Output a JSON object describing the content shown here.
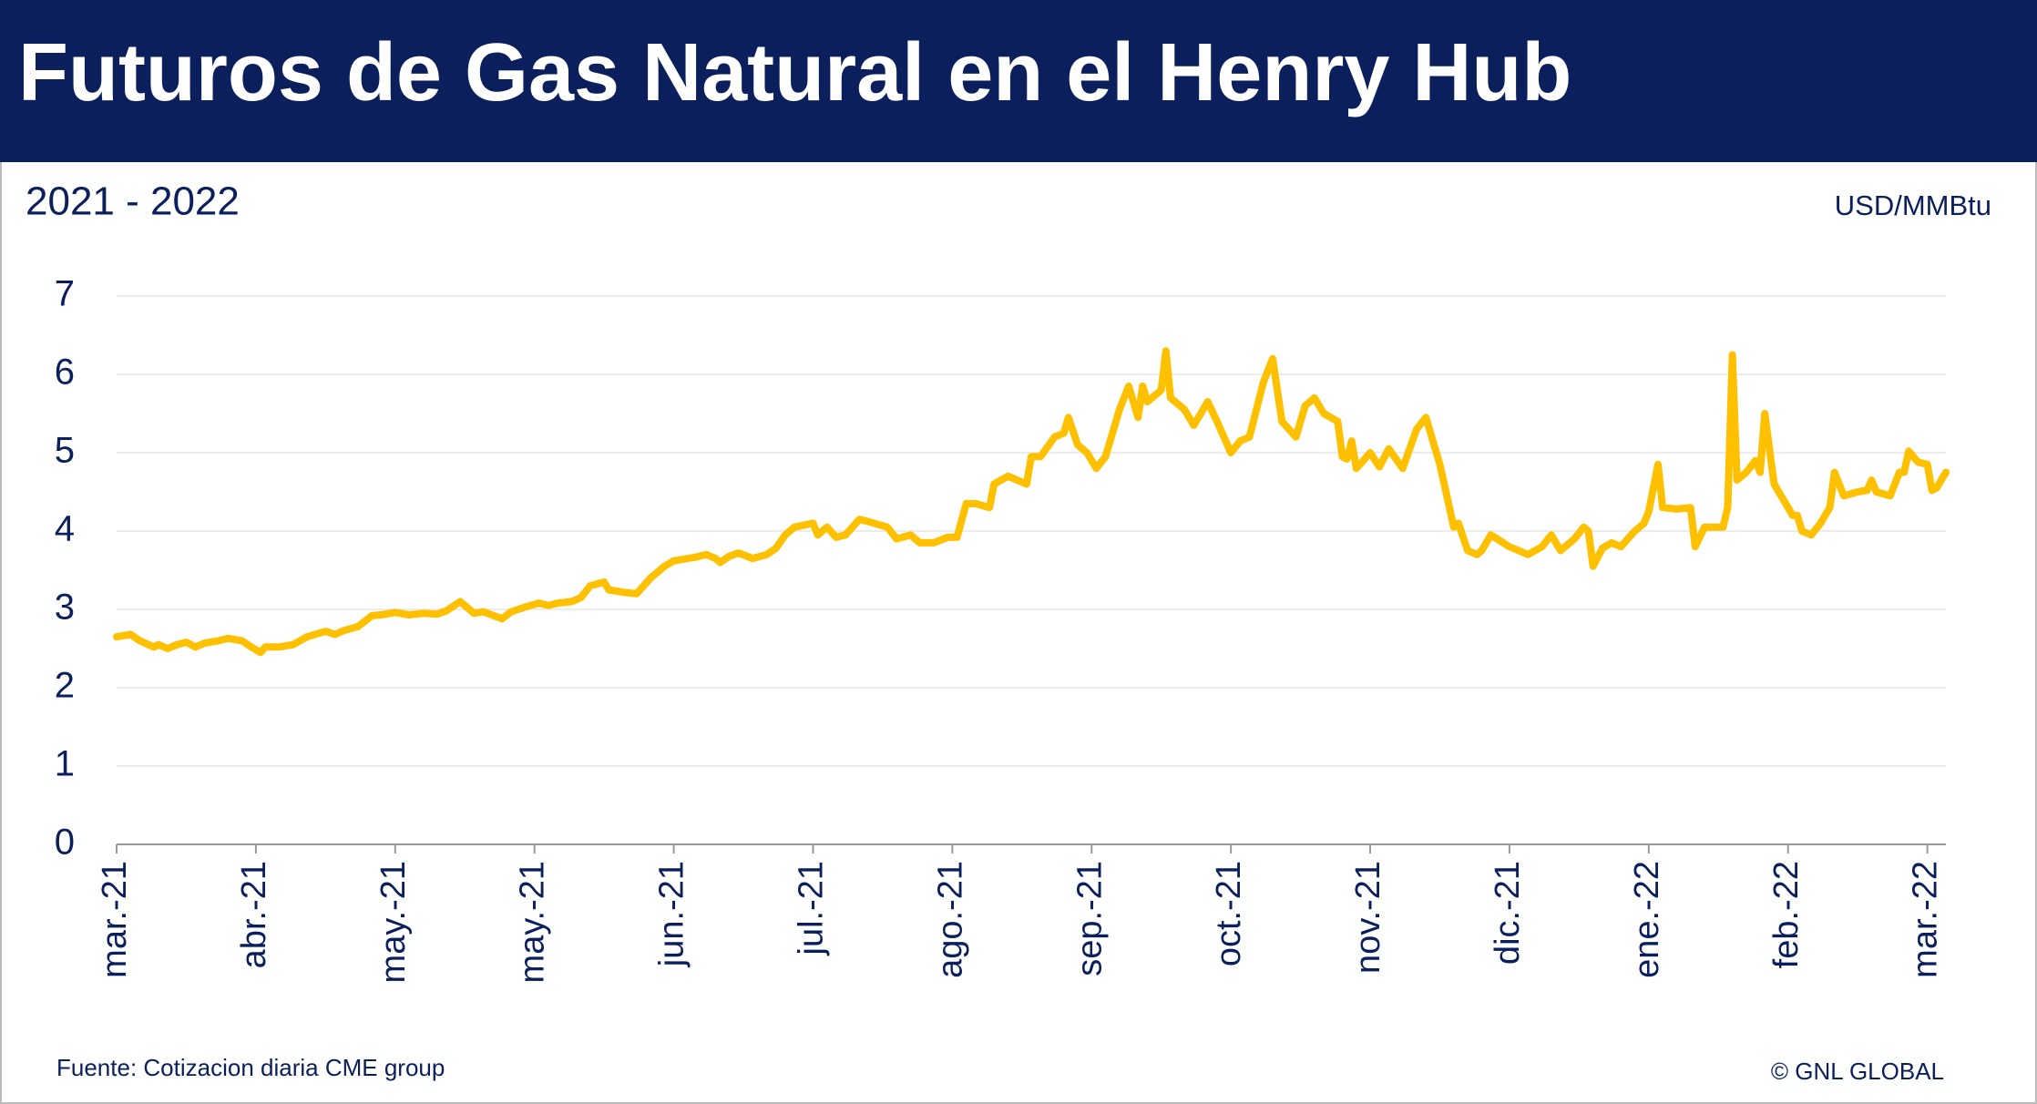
{
  "chart_data": {
    "type": "line",
    "title": "Futuros de Gas Natural en el Henry Hub",
    "subtitle": "2021 - 2022",
    "y_unit": "USD/MMBtu",
    "source": "Fuente: Cotizacion diaria CME group",
    "credit": "© GNL GLOBAL",
    "x": [
      0,
      3,
      5,
      8,
      9,
      11,
      13,
      15,
      17,
      19,
      22,
      24,
      27,
      29,
      31,
      32,
      35,
      38,
      41,
      45,
      47,
      49,
      52,
      55,
      57,
      60,
      63,
      66,
      69,
      71,
      74,
      77,
      79,
      83,
      85,
      88,
      91,
      93,
      95,
      98,
      100,
      102,
      105,
      106,
      109,
      112,
      115,
      118,
      120,
      125,
      127,
      129,
      130,
      132,
      134,
      137,
      140,
      142,
      144,
      146,
      150,
      151,
      153,
      155,
      157,
      160,
      162,
      166,
      168,
      171,
      173,
      176,
      179,
      181,
      183,
      185,
      188,
      189,
      192,
      196,
      197,
      199,
      202,
      204,
      205,
      207,
      209,
      211,
      213,
      216,
      218,
      220,
      221,
      222,
      225,
      226,
      227,
      230,
      232,
      235,
      237,
      240,
      242,
      244,
      247,
      249,
      251,
      254,
      256,
      258,
      260,
      263,
      264,
      265,
      266,
      267,
      270,
      272,
      274,
      277,
      280,
      282,
      285,
      288,
      289,
      291,
      293,
      294,
      296,
      300,
      302,
      304,
      307,
      309,
      311,
      314,
      316,
      317,
      318,
      320,
      322,
      324,
      327,
      329,
      330,
      332,
      333,
      336,
      339,
      340,
      342,
      346,
      347,
      348,
      349,
      351,
      353,
      354,
      355,
      357,
      361,
      362,
      363,
      365,
      367,
      369,
      370,
      372,
      375,
      377,
      378,
      379,
      382,
      384,
      385,
      386,
      388,
      390,
      391,
      392,
      394
    ],
    "series": [
      {
        "name": "Henry Hub",
        "color": "#FFC000",
        "values": [
          2.65,
          2.68,
          2.6,
          2.52,
          2.55,
          2.5,
          2.55,
          2.58,
          2.52,
          2.57,
          2.6,
          2.63,
          2.6,
          2.52,
          2.45,
          2.52,
          2.52,
          2.55,
          2.65,
          2.72,
          2.68,
          2.73,
          2.78,
          2.92,
          2.93,
          2.96,
          2.93,
          2.95,
          2.94,
          2.98,
          3.1,
          2.95,
          2.97,
          2.88,
          2.97,
          3.03,
          3.08,
          3.05,
          3.08,
          3.1,
          3.15,
          3.3,
          3.35,
          3.25,
          3.22,
          3.2,
          3.4,
          3.55,
          3.62,
          3.67,
          3.7,
          3.65,
          3.6,
          3.68,
          3.72,
          3.65,
          3.7,
          3.78,
          3.95,
          4.05,
          4.1,
          3.95,
          4.05,
          3.92,
          3.95,
          4.15,
          4.12,
          4.05,
          3.9,
          3.95,
          3.85,
          3.85,
          3.92,
          3.92,
          4.35,
          4.35,
          4.3,
          4.6,
          4.7,
          4.6,
          4.95,
          4.95,
          5.2,
          5.25,
          5.45,
          5.1,
          5.0,
          4.8,
          4.95,
          5.55,
          5.85,
          5.45,
          5.85,
          5.65,
          5.8,
          6.3,
          5.7,
          5.55,
          5.35,
          5.65,
          5.4,
          5.0,
          5.15,
          5.2,
          5.9,
          6.2,
          5.4,
          5.2,
          5.6,
          5.7,
          5.5,
          5.4,
          4.95,
          4.92,
          5.15,
          4.8,
          5.0,
          4.82,
          5.05,
          4.8,
          5.3,
          5.45,
          4.85,
          4.05,
          4.1,
          3.75,
          3.7,
          3.75,
          3.95,
          3.8,
          3.75,
          3.7,
          3.8,
          3.95,
          3.75,
          3.9,
          4.05,
          4.0,
          3.55,
          3.78,
          3.85,
          3.8,
          4.0,
          4.1,
          4.25,
          4.85,
          4.3,
          4.28,
          4.3,
          3.8,
          4.05,
          4.05,
          4.3,
          6.25,
          4.65,
          4.75,
          4.9,
          4.75,
          5.5,
          4.6,
          4.2,
          4.2,
          4.0,
          3.95,
          4.1,
          4.3,
          4.75,
          4.45,
          4.5,
          4.52,
          4.65,
          4.5,
          4.45,
          4.75,
          4.75,
          5.02,
          4.88,
          4.85,
          4.52,
          4.55,
          4.75
        ]
      }
    ],
    "xlim": [
      0,
      394
    ],
    "xticks": [
      {
        "value": 0,
        "label": "mar.-21"
      },
      {
        "value": 30,
        "label": "abr.-21"
      },
      {
        "value": 60,
        "label": "may.-21"
      },
      {
        "value": 90,
        "label": "may.-21"
      },
      {
        "value": 120,
        "label": "jun.-21"
      },
      {
        "value": 150,
        "label": "jul.-21"
      },
      {
        "value": 180,
        "label": "ago.-21"
      },
      {
        "value": 210,
        "label": "sep.-21"
      },
      {
        "value": 240,
        "label": "oct.-21"
      },
      {
        "value": 270,
        "label": "nov.-21"
      },
      {
        "value": 300,
        "label": "dic.-21"
      },
      {
        "value": 330,
        "label": "ene.-22"
      },
      {
        "value": 360,
        "label": "feb.-22"
      },
      {
        "value": 390,
        "label": "mar.-22"
      }
    ],
    "ylim": [
      0,
      7
    ],
    "yticks": [
      0,
      1,
      2,
      3,
      4,
      5,
      6,
      7
    ],
    "grid": true
  }
}
